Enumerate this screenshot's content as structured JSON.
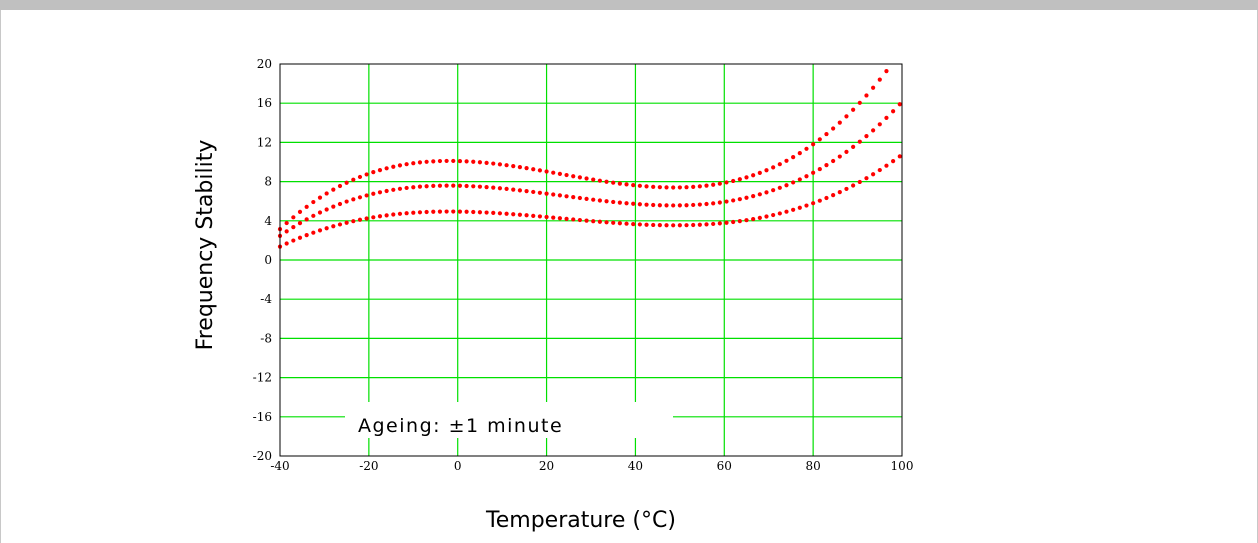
{
  "chart_data": {
    "type": "scatter",
    "title": "",
    "xlabel": "Temperature (°C)",
    "ylabel": "Frequency Stability",
    "xlim": [
      -40,
      100
    ],
    "ylim": [
      -20,
      20
    ],
    "xticks": [
      -40,
      -20,
      0,
      20,
      40,
      60,
      80,
      100
    ],
    "yticks": [
      20,
      16,
      12,
      8,
      4,
      0,
      -4,
      -8,
      -12,
      -16,
      -20
    ],
    "grid": true,
    "grid_color": "#00e000",
    "marker_color": "#ff0000",
    "annotation": "Ageing: ±1 minute",
    "x_step": 1.5,
    "series": [
      {
        "cubic_coeffs": [
          2.16e-05,
          -0.00152,
          -0.00594,
          4.94
        ]
      },
      {
        "cubic_coeffs": [
          3.13e-05,
          -0.00218,
          -0.0094,
          7.58
        ]
      },
      {
        "cubic_coeffs": [
          4.2e-05,
          -0.00295,
          -0.01137,
          10.1
        ]
      }
    ]
  }
}
